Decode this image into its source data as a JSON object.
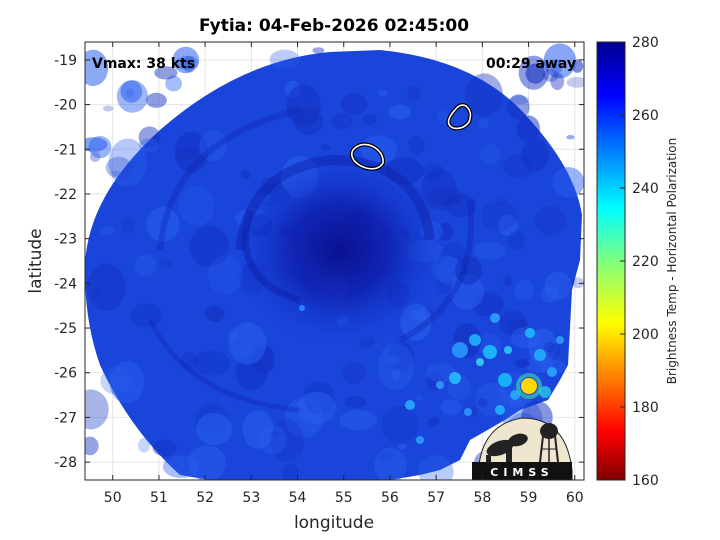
{
  "title": "Fytia: 04-Feb-2026 02:45:00",
  "overlay": {
    "vmax": "Vmax: 38 kts",
    "time_away": "00:29 away"
  },
  "axes": {
    "xlabel": "longitude",
    "ylabel": "latitude",
    "xlim": [
      49.4,
      60.2
    ],
    "ylim": [
      -28.4,
      -18.6
    ],
    "xticks": [
      50,
      51,
      52,
      53,
      54,
      55,
      56,
      57,
      58,
      59,
      60
    ],
    "yticks": [
      -19,
      -20,
      -21,
      -22,
      -23,
      -24,
      -25,
      -26,
      -27,
      -28
    ],
    "grid": true
  },
  "colorbar": {
    "label": "Brightness Temp - Horizontal Polarization",
    "range": [
      160,
      280
    ],
    "ticks": [
      280,
      260,
      240,
      220,
      200,
      180,
      160
    ],
    "colormap": "jet"
  },
  "storm_center": {
    "lon": 55.2,
    "lat": -23.2
  },
  "contours": [
    {
      "center": {
        "lon": 55.5,
        "lat": -21.1
      },
      "value": "warm core"
    },
    {
      "center": {
        "lon": 57.5,
        "lat": -20.2
      },
      "value": "warm core"
    }
  ],
  "logo": {
    "text": "CIMSS"
  },
  "colors": {
    "background": "#1440dc",
    "core": "#0a14a0",
    "warm_pixels": "#18c8ff",
    "hot_pixel": "#ffe000"
  }
}
